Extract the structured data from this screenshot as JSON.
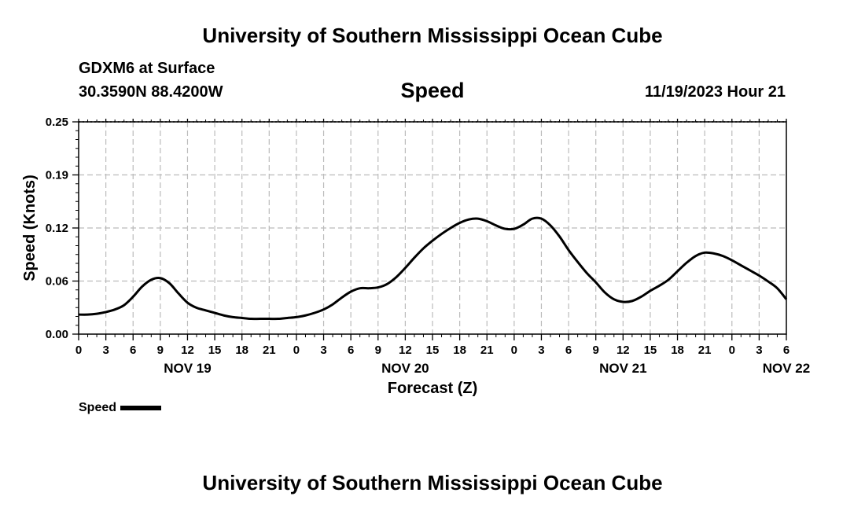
{
  "header": {
    "title": "University of Southern Mississippi Ocean Cube",
    "station": "GDXM6 at Surface",
    "coords": "30.3590N  88.4200W",
    "date": "11/19/2023 Hour 21",
    "footer_title": "University of Southern Mississippi Ocean Cube"
  },
  "legend": {
    "label": "Speed"
  },
  "chart_data": {
    "type": "line",
    "title": "Speed",
    "xlabel": "Forecast (Z)",
    "ylabel": "Speed (Knots)",
    "ylim": [
      0,
      0.25
    ],
    "yticks": [
      "0.00",
      "0.06",
      "0.12",
      "0.19",
      "0.25"
    ],
    "ytick_values": [
      0,
      0.0625,
      0.125,
      0.1875,
      0.25
    ],
    "xlim": [
      0,
      78
    ],
    "x_units": "hours from NOV 19 00Z",
    "xtick_labels": [
      "0",
      "3",
      "6",
      "9",
      "12",
      "15",
      "18",
      "21",
      "0",
      "3",
      "6",
      "9",
      "12",
      "15",
      "18",
      "21",
      "0",
      "3",
      "6",
      "9",
      "12",
      "15",
      "18",
      "21",
      "0",
      "3",
      "6"
    ],
    "date_labels": [
      {
        "label": "NOV 19",
        "hour": 12
      },
      {
        "label": "NOV 20",
        "hour": 36
      },
      {
        "label": "NOV 21",
        "hour": 60
      },
      {
        "label": "NOV 22",
        "hour": 78
      }
    ],
    "grid": true,
    "series": [
      {
        "name": "Speed",
        "color": "#000000",
        "x": [
          0,
          1,
          2,
          3,
          4,
          5,
          6,
          7,
          8,
          9,
          10,
          11,
          12,
          13,
          14,
          15,
          16,
          17,
          18,
          19,
          20,
          21,
          22,
          23,
          24,
          25,
          26,
          27,
          28,
          29,
          30,
          31,
          32,
          33,
          34,
          35,
          36,
          37,
          38,
          39,
          40,
          41,
          42,
          43,
          44,
          45,
          46,
          47,
          48,
          49,
          50,
          51,
          52,
          53,
          54,
          55,
          56,
          57,
          58,
          59,
          60,
          61,
          62,
          63,
          64,
          65,
          66,
          67,
          68,
          69,
          70,
          71,
          72,
          73,
          74,
          75,
          76,
          77,
          78
        ],
        "values": [
          0.023,
          0.023,
          0.024,
          0.026,
          0.029,
          0.034,
          0.044,
          0.056,
          0.064,
          0.066,
          0.06,
          0.048,
          0.037,
          0.031,
          0.028,
          0.025,
          0.022,
          0.02,
          0.019,
          0.018,
          0.018,
          0.018,
          0.018,
          0.019,
          0.02,
          0.022,
          0.025,
          0.029,
          0.035,
          0.043,
          0.05,
          0.054,
          0.054,
          0.055,
          0.059,
          0.067,
          0.078,
          0.09,
          0.101,
          0.11,
          0.118,
          0.125,
          0.131,
          0.135,
          0.136,
          0.133,
          0.128,
          0.124,
          0.124,
          0.129,
          0.136,
          0.136,
          0.128,
          0.115,
          0.099,
          0.085,
          0.072,
          0.061,
          0.049,
          0.041,
          0.038,
          0.039,
          0.044,
          0.051,
          0.057,
          0.064,
          0.074,
          0.084,
          0.092,
          0.096,
          0.095,
          0.092,
          0.087,
          0.081,
          0.075,
          0.069,
          0.062,
          0.054,
          0.041
        ]
      }
    ]
  }
}
